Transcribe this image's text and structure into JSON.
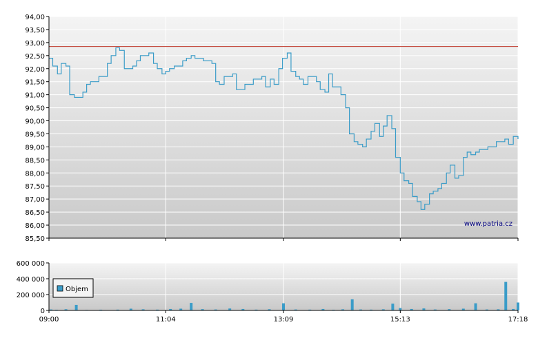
{
  "chart_data": [
    {
      "type": "line",
      "watermark": "www.patria.cz",
      "ylim": [
        85.5,
        94.0
      ],
      "y_ticks": [
        "94,00",
        "93,50",
        "93,00",
        "92,50",
        "92,00",
        "91,50",
        "91,00",
        "90,50",
        "90,00",
        "89,50",
        "89,00",
        "88,50",
        "88,00",
        "87,50",
        "87,00",
        "86,50",
        "86,00",
        "85,50"
      ],
      "y_tick_values": [
        94.0,
        93.5,
        93.0,
        92.5,
        92.0,
        91.5,
        91.0,
        90.5,
        90.0,
        89.5,
        89.0,
        88.5,
        88.0,
        87.5,
        87.0,
        86.5,
        86.0,
        85.5
      ],
      "reference_line": {
        "value": 92.85,
        "color": "#c0392b"
      },
      "x_ticks": [
        "09:00",
        "11:04",
        "13:09",
        "15:13",
        "17:18"
      ],
      "series": [
        {
          "color": "#3a9cc8",
          "x": [
            "09:00",
            "09:04",
            "09:09",
            "09:13",
            "09:18",
            "09:22",
            "09:27",
            "09:36",
            "09:40",
            "09:44",
            "09:49",
            "09:53",
            "10:02",
            "10:06",
            "10:11",
            "10:15",
            "10:20",
            "10:29",
            "10:33",
            "10:37",
            "10:42",
            "10:46",
            "10:51",
            "10:55",
            "11:00",
            "11:04",
            "11:08",
            "11:13",
            "11:22",
            "11:26",
            "11:31",
            "11:35",
            "11:44",
            "11:48",
            "11:53",
            "11:57",
            "12:01",
            "12:06",
            "12:15",
            "12:19",
            "12:28",
            "12:37",
            "12:46",
            "12:50",
            "12:55",
            "12:59",
            "13:04",
            "13:08",
            "13:13",
            "13:17",
            "13:22",
            "13:26",
            "13:30",
            "13:35",
            "13:44",
            "13:48",
            "13:53",
            "13:57",
            "14:01",
            "14:10",
            "14:15",
            "14:19",
            "14:24",
            "14:28",
            "14:33",
            "14:37",
            "14:42",
            "14:46",
            "14:51",
            "14:55",
            "14:59",
            "15:04",
            "15:08",
            "15:13",
            "15:17",
            "15:22",
            "15:26",
            "15:31",
            "15:35",
            "15:39",
            "15:44",
            "15:48",
            "15:53",
            "15:57",
            "16:02",
            "16:06",
            "16:11",
            "16:15",
            "16:20",
            "16:24",
            "16:28",
            "16:33",
            "16:37",
            "16:46",
            "16:55",
            "17:04",
            "17:08",
            "17:13",
            "17:18"
          ],
          "values": [
            92.4,
            92.1,
            91.8,
            92.2,
            92.1,
            91.0,
            90.9,
            91.1,
            91.4,
            91.5,
            91.5,
            91.7,
            92.2,
            92.5,
            92.8,
            92.7,
            92.0,
            92.1,
            92.3,
            92.5,
            92.5,
            92.6,
            92.2,
            92.0,
            91.8,
            91.9,
            92.0,
            92.1,
            92.3,
            92.4,
            92.5,
            92.4,
            92.3,
            92.3,
            92.2,
            91.5,
            91.4,
            91.7,
            91.8,
            91.2,
            91.4,
            91.6,
            91.7,
            91.3,
            91.6,
            91.4,
            92.0,
            92.4,
            92.6,
            91.9,
            91.7,
            91.6,
            91.4,
            91.7,
            91.5,
            91.2,
            91.1,
            91.8,
            91.3,
            91.0,
            90.5,
            89.5,
            89.2,
            89.1,
            89.0,
            89.3,
            89.6,
            89.9,
            89.4,
            89.8,
            90.2,
            89.7,
            88.6,
            88.0,
            87.7,
            87.6,
            87.1,
            86.9,
            86.6,
            86.8,
            87.2,
            87.3,
            87.4,
            87.6,
            88.0,
            88.3,
            87.8,
            87.9,
            88.6,
            88.8,
            88.7,
            88.8,
            88.9,
            89.0,
            89.2,
            89.3,
            89.1,
            89.4,
            89.3
          ]
        }
      ]
    },
    {
      "type": "bar",
      "ylim": [
        0,
        600000
      ],
      "y_ticks": [
        "600 000",
        "400 000",
        "200 000",
        "0"
      ],
      "y_tick_values": [
        600000,
        400000,
        200000,
        0
      ],
      "x_ticks": [
        "09:00",
        "11:04",
        "13:09",
        "15:13",
        "17:18"
      ],
      "series": [
        {
          "name": "Objem",
          "color": "#3a9cc8",
          "x": [
            "09:00",
            "09:08",
            "09:18",
            "09:29",
            "09:40",
            "09:55",
            "10:13",
            "10:27",
            "10:40",
            "10:55",
            "11:09",
            "11:20",
            "11:31",
            "11:43",
            "11:57",
            "12:12",
            "12:26",
            "12:40",
            "12:54",
            "13:09",
            "13:22",
            "13:37",
            "13:51",
            "14:02",
            "14:12",
            "14:22",
            "14:31",
            "14:42",
            "14:55",
            "15:05",
            "15:13",
            "15:25",
            "15:38",
            "15:50",
            "16:05",
            "16:20",
            "16:33",
            "16:45",
            "16:57",
            "17:05",
            "17:13",
            "17:18"
          ],
          "values": [
            12000,
            8000,
            15000,
            70000,
            6000,
            9000,
            10000,
            22000,
            14000,
            10000,
            18000,
            22000,
            95000,
            16000,
            12000,
            24000,
            18000,
            10000,
            15000,
            90000,
            12000,
            10000,
            18000,
            8000,
            14000,
            140000,
            12000,
            10000,
            14000,
            85000,
            30000,
            18000,
            25000,
            12000,
            16000,
            22000,
            90000,
            12000,
            14000,
            360000,
            18000,
            100000
          ]
        }
      ]
    }
  ]
}
